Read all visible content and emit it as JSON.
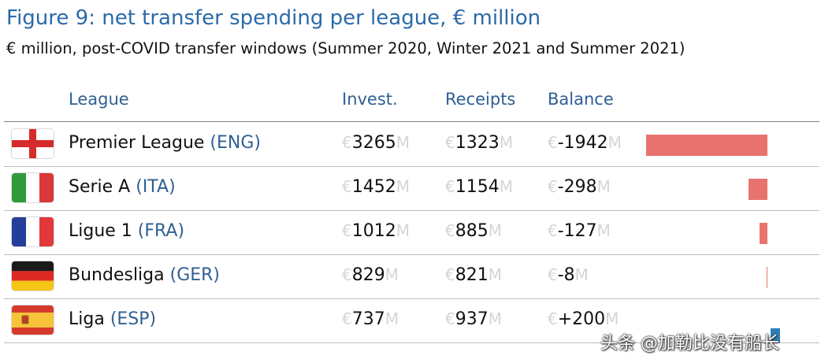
{
  "header": {
    "title": "Figure 9: net transfer spending per league, € million",
    "subtitle": "€ million, post-COVID transfer windows (Summer 2020, Winter 2021 and Summer 2021)"
  },
  "columns": {
    "league": "League",
    "invest": "Invest.",
    "receipts": "Receipts",
    "balance": "Balance"
  },
  "currency_prefix": "€",
  "unit_suffix": "M",
  "colors": {
    "negative_bar": "#e8736e",
    "positive_bar": "#2e7fb8",
    "title": "#2b6aa8"
  },
  "chart_data": {
    "type": "table",
    "rows": [
      {
        "league": "Premier League",
        "code": "(ENG)",
        "flag": "england-flag-icon",
        "invest": 3265,
        "receipts": 1323,
        "balance": "-1942",
        "balance_value": -1942
      },
      {
        "league": "Serie A",
        "code": "(ITA)",
        "flag": "italy-flag-icon",
        "invest": 1452,
        "receipts": 1154,
        "balance": "-298",
        "balance_value": -298
      },
      {
        "league": "Ligue 1",
        "code": "(FRA)",
        "flag": "france-flag-icon",
        "invest": 1012,
        "receipts": 885,
        "balance": "-127",
        "balance_value": -127
      },
      {
        "league": "Bundesliga",
        "code": "(GER)",
        "flag": "germany-flag-icon",
        "invest": 829,
        "receipts": 821,
        "balance": "-8",
        "balance_value": -8
      },
      {
        "league": "Liga",
        "code": "(ESP)",
        "flag": "spain-flag-icon",
        "invest": 737,
        "receipts": 937,
        "balance": "+200",
        "balance_value": 200
      }
    ]
  },
  "watermark": "头条 @加勒比没有船长"
}
